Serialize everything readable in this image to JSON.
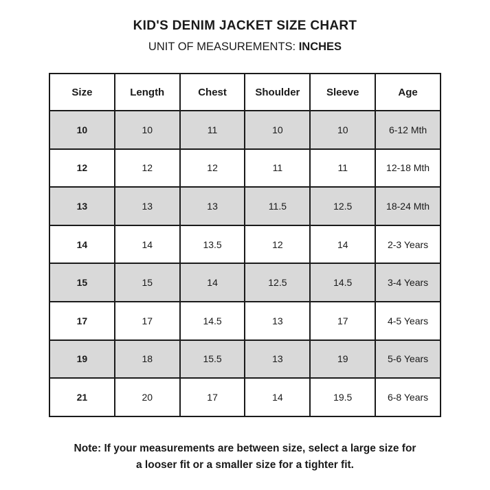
{
  "header": {
    "title": "KID'S DENIM JACKET SIZE CHART",
    "subtitle_prefix": "UNIT OF MEASUREMENTS: ",
    "subtitle_unit": "INCHES"
  },
  "table": {
    "columns": [
      "Size",
      "Length",
      "Chest",
      "Shoulder",
      "Sleeve",
      "Age"
    ],
    "rows": [
      {
        "cells": [
          "10",
          "10",
          "11",
          "10",
          "10",
          "6-12 Mth"
        ],
        "shaded": true
      },
      {
        "cells": [
          "12",
          "12",
          "12",
          "11",
          "11",
          "12-18 Mth"
        ],
        "shaded": false
      },
      {
        "cells": [
          "13",
          "13",
          "13",
          "11.5",
          "12.5",
          "18-24 Mth"
        ],
        "shaded": true
      },
      {
        "cells": [
          "14",
          "14",
          "13.5",
          "12",
          "14",
          "2-3 Years"
        ],
        "shaded": false
      },
      {
        "cells": [
          "15",
          "15",
          "14",
          "12.5",
          "14.5",
          "3-4 Years"
        ],
        "shaded": true
      },
      {
        "cells": [
          "17",
          "17",
          "14.5",
          "13",
          "17",
          "4-5 Years"
        ],
        "shaded": false
      },
      {
        "cells": [
          "19",
          "18",
          "15.5",
          "13",
          "19",
          "5-6 Years"
        ],
        "shaded": true
      },
      {
        "cells": [
          "21",
          "20",
          "17",
          "14",
          "19.5",
          "6-8 Years"
        ],
        "shaded": false
      }
    ]
  },
  "note": {
    "line1": "Note: If your measurements are between size, select a large size for",
    "line2": "a looser fit or a smaller size for a tighter fit."
  },
  "colors": {
    "row_shaded": "#d9d9d9",
    "border": "#1a1a1a",
    "text": "#1a1a1a",
    "background": "#ffffff"
  }
}
